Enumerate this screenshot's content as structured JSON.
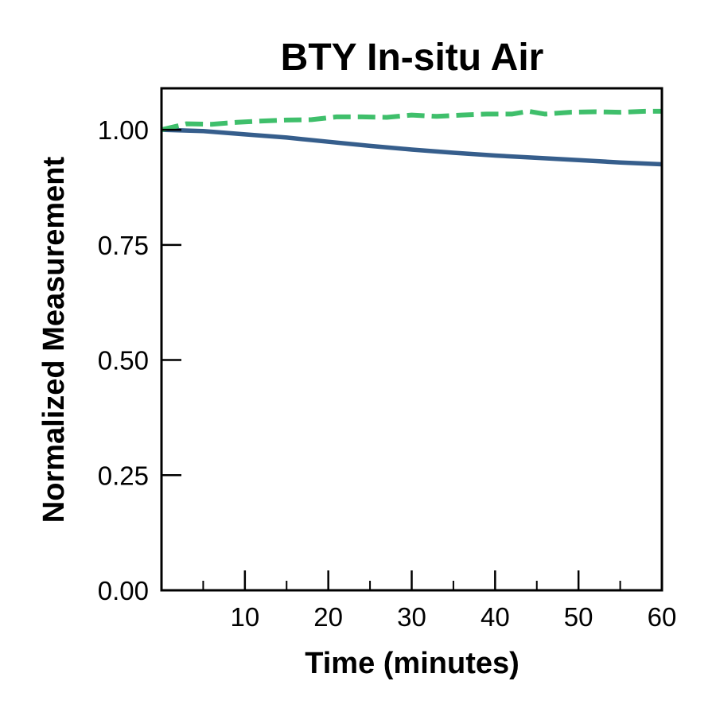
{
  "chart_data": {
    "type": "line",
    "title": "BTY In-situ Air",
    "xlabel": "Time (minutes)",
    "ylabel": "Normalized Measurement",
    "xlim": [
      0,
      60
    ],
    "ylim": [
      0,
      1.09
    ],
    "x_ticks": [
      10,
      20,
      30,
      40,
      50,
      60
    ],
    "x_tick_labels": [
      "10",
      "20",
      "30",
      "40",
      "50",
      "60"
    ],
    "x_minor_ticks": [
      5,
      15,
      25,
      35,
      45,
      55
    ],
    "y_ticks": [
      0,
      0.25,
      0.5,
      0.75,
      1.0
    ],
    "y_tick_labels": [
      "0.00",
      "0.25",
      "0.50",
      "0.75",
      "1.00"
    ],
    "grid": false,
    "series": [
      {
        "color": "#365e8c",
        "style": "solid",
        "x": [
          0,
          5,
          10,
          15,
          20,
          25,
          30,
          35,
          40,
          45,
          50,
          55,
          60
        ],
        "y": [
          1.0,
          0.997,
          0.99,
          0.983,
          0.974,
          0.965,
          0.957,
          0.95,
          0.944,
          0.939,
          0.934,
          0.929,
          0.925
        ]
      },
      {
        "color": "#3fbf6b",
        "style": "dashed",
        "x": [
          0,
          3,
          6,
          9,
          12,
          15,
          18,
          21,
          24,
          27,
          30,
          33,
          36,
          39,
          42,
          44,
          46,
          49,
          52,
          55,
          58,
          60
        ],
        "y": [
          1.0,
          1.013,
          1.012,
          1.016,
          1.019,
          1.021,
          1.022,
          1.028,
          1.028,
          1.027,
          1.032,
          1.029,
          1.032,
          1.034,
          1.034,
          1.04,
          1.034,
          1.038,
          1.039,
          1.038,
          1.04,
          1.04
        ]
      }
    ]
  }
}
